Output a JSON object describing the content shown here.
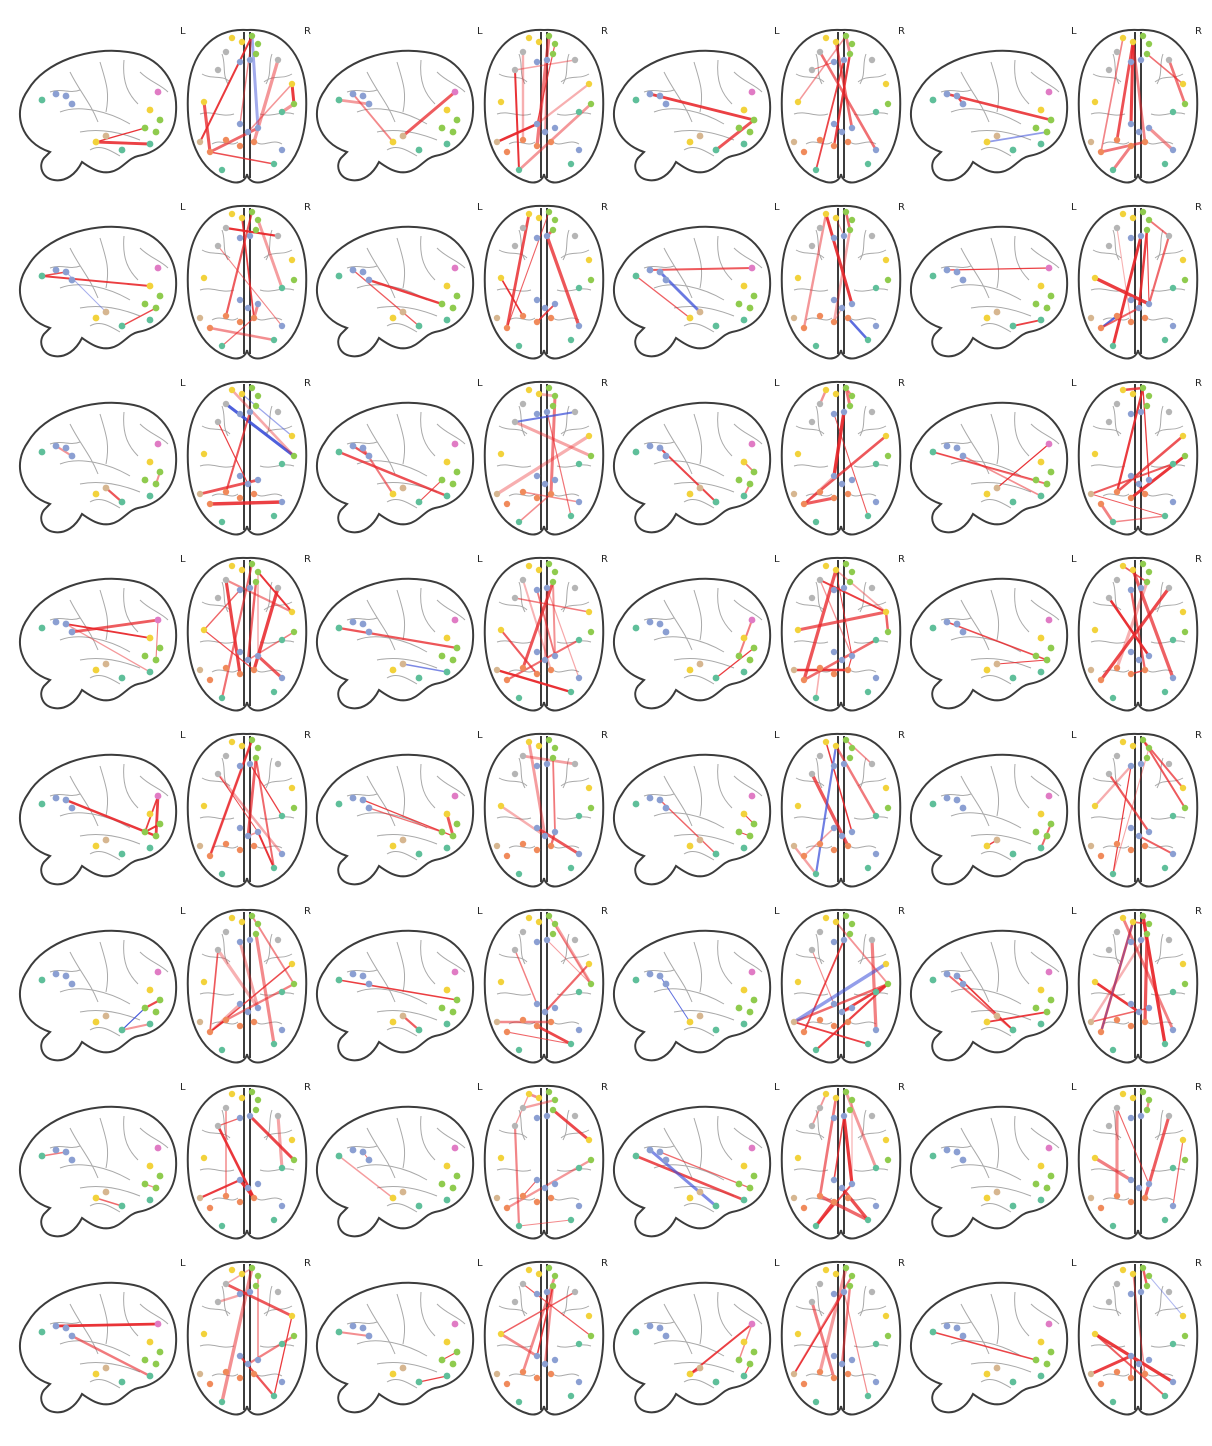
{
  "figure": {
    "rows": 8,
    "pairs_per_row": 4,
    "views": [
      "sagittal",
      "axial"
    ],
    "axial_hemisphere_labels": {
      "left": "L",
      "right": "R"
    }
  },
  "colors": {
    "positive_edge": "#e8262a",
    "negative_edge": "#3b4fd8",
    "outline": "#3c3c3c",
    "sulcus": "#a9a9a9"
  },
  "node_colors": [
    "#5fbf9a",
    "#8b9fd2",
    "#e07bc4",
    "#f2d23b",
    "#8fcb4e",
    "#f08a5b",
    "#d6b690",
    "#b5b5b5"
  ]
}
